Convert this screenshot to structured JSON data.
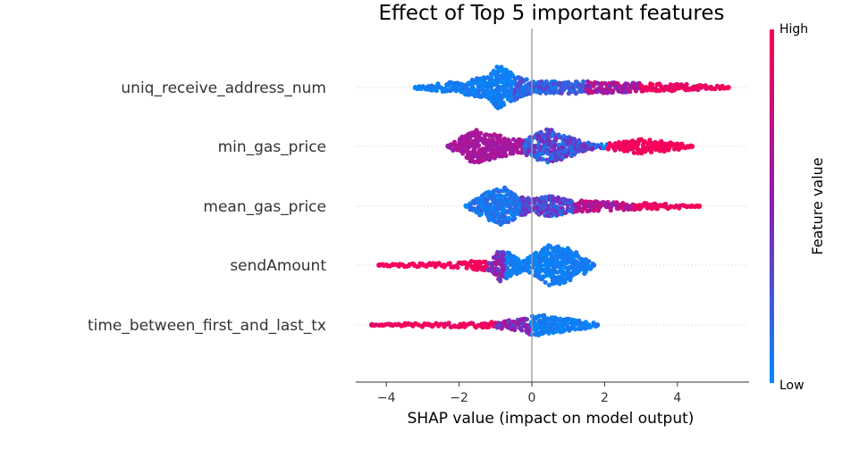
{
  "chart_data": {
    "type": "scatter",
    "title": "Effect of Top 5 important features",
    "xlabel": "SHAP value (impact on model output)",
    "xlim": [
      -4.85,
      5.9
    ],
    "xticks": [
      {
        "value": -4,
        "label": "−4"
      },
      {
        "value": -2,
        "label": "−2"
      },
      {
        "value": 0,
        "label": "0"
      },
      {
        "value": 2,
        "label": "2"
      },
      {
        "value": 4,
        "label": "4"
      }
    ],
    "colorbar": {
      "label": "Feature value",
      "high": "High",
      "low": "Low",
      "high_color": "#ff0052",
      "mid_color": "#8a1fb5",
      "low_color": "#008bfb"
    },
    "features": [
      {
        "name": "uniq_receive_address_num",
        "min": -3.2,
        "max": 5.4,
        "profile": [
          [
            -3.2,
            0.05
          ],
          [
            -2.0,
            0.25
          ],
          [
            -1.2,
            0.45
          ],
          [
            -0.9,
            0.95
          ],
          [
            -0.5,
            0.55
          ],
          [
            0.0,
            0.25
          ],
          [
            1.5,
            0.25
          ],
          [
            3.0,
            0.18
          ],
          [
            4.5,
            0.12
          ],
          [
            5.4,
            0.05
          ]
        ],
        "color_segments": [
          [
            -3.2,
            -0.5,
            0.0,
            0.12
          ],
          [
            -0.5,
            1.5,
            0.05,
            0.35
          ],
          [
            1.5,
            3.0,
            0.4,
            0.85
          ],
          [
            3.0,
            5.4,
            0.85,
            1.0
          ]
        ]
      },
      {
        "name": "min_gas_price",
        "min": -2.3,
        "max": 4.4,
        "profile": [
          [
            -2.3,
            0.05
          ],
          [
            -2.0,
            0.3
          ],
          [
            -1.6,
            0.7
          ],
          [
            -1.1,
            0.55
          ],
          [
            -0.5,
            0.3
          ],
          [
            0.0,
            0.4
          ],
          [
            0.4,
            0.75
          ],
          [
            0.9,
            0.5
          ],
          [
            1.4,
            0.2
          ],
          [
            1.9,
            0.08
          ],
          [
            2.2,
            0.15
          ],
          [
            3.0,
            0.3
          ],
          [
            3.8,
            0.18
          ],
          [
            4.4,
            0.05
          ]
        ],
        "color_segments": [
          [
            -2.3,
            -0.2,
            0.55,
            0.7
          ],
          [
            -0.2,
            1.9,
            0.05,
            0.5
          ],
          [
            2.1,
            4.4,
            0.9,
            1.0
          ]
        ]
      },
      {
        "name": "mean_gas_price",
        "min": -1.8,
        "max": 4.6,
        "profile": [
          [
            -1.8,
            0.05
          ],
          [
            -1.2,
            0.6
          ],
          [
            -0.8,
            0.8
          ],
          [
            -0.4,
            0.45
          ],
          [
            0.0,
            0.3
          ],
          [
            0.6,
            0.45
          ],
          [
            1.0,
            0.25
          ],
          [
            2.0,
            0.18
          ],
          [
            3.0,
            0.13
          ],
          [
            4.0,
            0.1
          ],
          [
            4.6,
            0.04
          ]
        ],
        "color_segments": [
          [
            -1.8,
            -0.3,
            0.0,
            0.2
          ],
          [
            -0.3,
            1.2,
            0.1,
            0.5
          ],
          [
            1.2,
            2.8,
            0.5,
            0.85
          ],
          [
            2.8,
            4.6,
            0.85,
            1.0
          ]
        ]
      },
      {
        "name": "sendAmount",
        "min": -4.2,
        "max": 1.7,
        "profile": [
          [
            -4.2,
            0.03
          ],
          [
            -3.0,
            0.08
          ],
          [
            -2.0,
            0.1
          ],
          [
            -1.5,
            0.2
          ],
          [
            -1.1,
            0.25
          ],
          [
            -0.9,
            0.7
          ],
          [
            -0.6,
            0.5
          ],
          [
            -0.2,
            0.2
          ],
          [
            0.1,
            0.5
          ],
          [
            0.5,
            0.85
          ],
          [
            0.9,
            0.75
          ],
          [
            1.3,
            0.5
          ],
          [
            1.7,
            0.05
          ]
        ],
        "color_segments": [
          [
            -4.2,
            -1.2,
            0.9,
            1.0
          ],
          [
            -1.2,
            -0.7,
            0.3,
            0.7
          ],
          [
            -0.7,
            1.7,
            0.0,
            0.12
          ]
        ]
      },
      {
        "name": "time_between_first_and_last_tx",
        "min": -4.4,
        "max": 1.8,
        "profile": [
          [
            -4.4,
            0.04
          ],
          [
            -3.0,
            0.08
          ],
          [
            -1.5,
            0.1
          ],
          [
            -0.8,
            0.15
          ],
          [
            -0.3,
            0.25
          ],
          [
            0.1,
            0.45
          ],
          [
            0.5,
            0.35
          ],
          [
            1.0,
            0.25
          ],
          [
            1.5,
            0.15
          ],
          [
            1.8,
            0.05
          ]
        ],
        "color_segments": [
          [
            -4.4,
            -1.0,
            0.85,
            1.0
          ],
          [
            -1.0,
            0.0,
            0.3,
            0.7
          ],
          [
            0.0,
            1.8,
            0.0,
            0.12
          ]
        ]
      }
    ]
  }
}
